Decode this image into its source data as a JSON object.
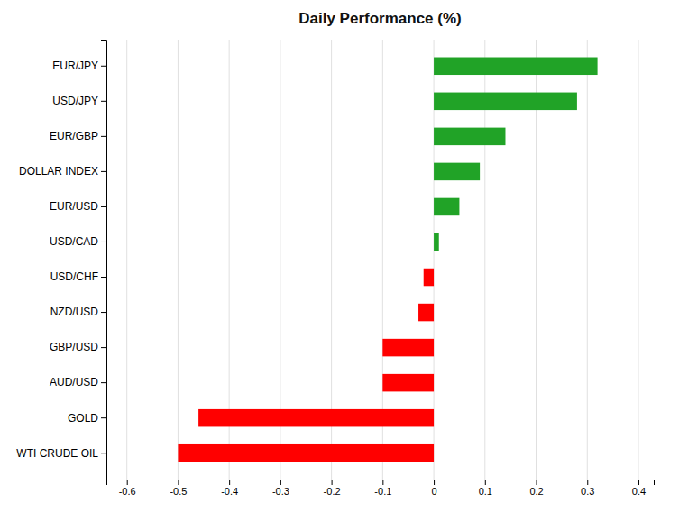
{
  "chart_data": {
    "type": "bar",
    "orientation": "horizontal",
    "title": "Daily Performance (%)",
    "categories": [
      "WTI CRUDE OIL",
      "GOLD",
      "AUD/USD",
      "GBP/USD",
      "NZD/USD",
      "USD/CHF",
      "USD/CAD",
      "EUR/USD",
      "DOLLAR INDEX",
      "EUR/GBP",
      "USD/JPY",
      "EUR/JPY"
    ],
    "values": [
      -0.5,
      -0.46,
      -0.1,
      -0.1,
      -0.03,
      -0.02,
      0.01,
      0.05,
      0.09,
      0.14,
      0.28,
      0.32
    ],
    "colors": [
      "#ff0000",
      "#ff0000",
      "#ff0000",
      "#ff0000",
      "#ff0000",
      "#ff0000",
      "#21a327",
      "#21a327",
      "#21a327",
      "#21a327",
      "#21a327",
      "#21a327"
    ],
    "xlim": [
      -0.64,
      0.43
    ],
    "xticks": [
      -0.6,
      -0.5,
      -0.4,
      -0.3,
      -0.2,
      -0.1,
      0,
      0.1,
      0.2,
      0.3,
      0.4
    ],
    "grid": true
  }
}
